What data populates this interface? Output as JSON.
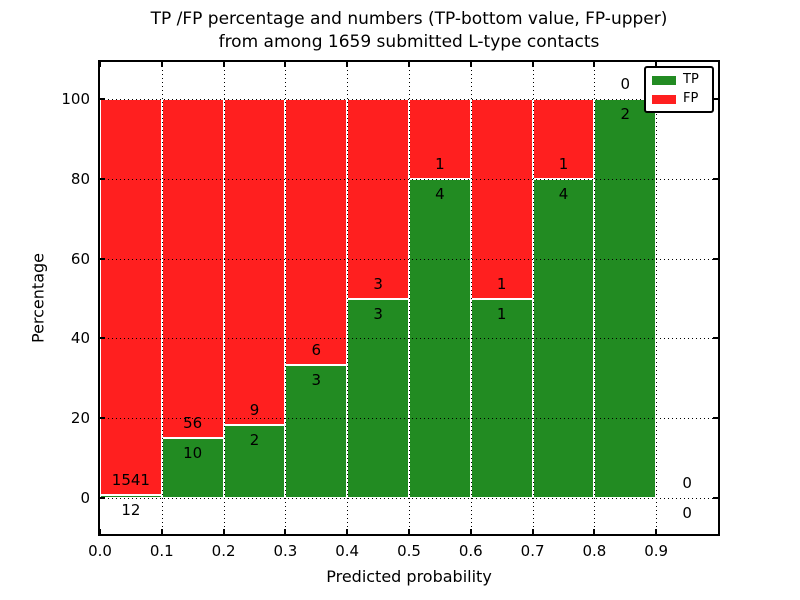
{
  "title": {
    "line1": "TP /FP percentage and numbers (TP-bottom value, FP-upper)",
    "line2": "from among 1659 submitted L-type contacts"
  },
  "axes": {
    "xlabel": "Predicted probability",
    "ylabel": "Percentage",
    "x_tick_labels": [
      "0.0",
      "0.1",
      "0.2",
      "0.3",
      "0.4",
      "0.5",
      "0.6",
      "0.7",
      "0.8",
      "0.9"
    ],
    "y_tick_labels": [
      "0",
      "20",
      "40",
      "60",
      "80",
      "100"
    ]
  },
  "legend": {
    "items": [
      {
        "label": "TP",
        "color": "#228b22"
      },
      {
        "label": "FP",
        "color": "#ff1f1f"
      }
    ]
  },
  "colors": {
    "tp": "#228b22",
    "fp": "#ff1f1f",
    "bar_edge": "#ffffff",
    "grid": "#000000",
    "background": "#ffffff",
    "text": "#000000"
  },
  "chart_data": {
    "type": "bar",
    "stacked": true,
    "title": "TP /FP percentage and numbers (TP-bottom value, FP-upper) from among 1659 submitted L-type contacts",
    "xlabel": "Predicted probability",
    "ylabel": "Percentage",
    "bin_edges": [
      0.0,
      0.1,
      0.2,
      0.3,
      0.4,
      0.5,
      0.6,
      0.7,
      0.8,
      0.9,
      1.0
    ],
    "categories": [
      "0.0-0.1",
      "0.1-0.2",
      "0.2-0.3",
      "0.3-0.4",
      "0.4-0.5",
      "0.5-0.6",
      "0.6-0.7",
      "0.7-0.8",
      "0.8-0.9",
      "0.9-1.0"
    ],
    "series": [
      {
        "name": "TP",
        "values": [
          12,
          10,
          2,
          3,
          3,
          4,
          1,
          4,
          2,
          0
        ]
      },
      {
        "name": "FP",
        "values": [
          1541,
          56,
          9,
          6,
          3,
          1,
          1,
          1,
          0,
          0
        ]
      }
    ],
    "tp_percent_per_bin": [
      0.77,
      15.15,
      18.18,
      33.33,
      50.0,
      80.0,
      50.0,
      80.0,
      100.0,
      null
    ],
    "total_contacts": 1659,
    "xlim": [
      0.0,
      1.0
    ],
    "ylim": [
      -9.5,
      110
    ],
    "x_ticks": [
      0.0,
      0.1,
      0.2,
      0.3,
      0.4,
      0.5,
      0.6,
      0.7,
      0.8,
      0.9
    ],
    "y_ticks": [
      0,
      20,
      40,
      60,
      80,
      100
    ],
    "grid": true,
    "legend_position": "upper right"
  }
}
